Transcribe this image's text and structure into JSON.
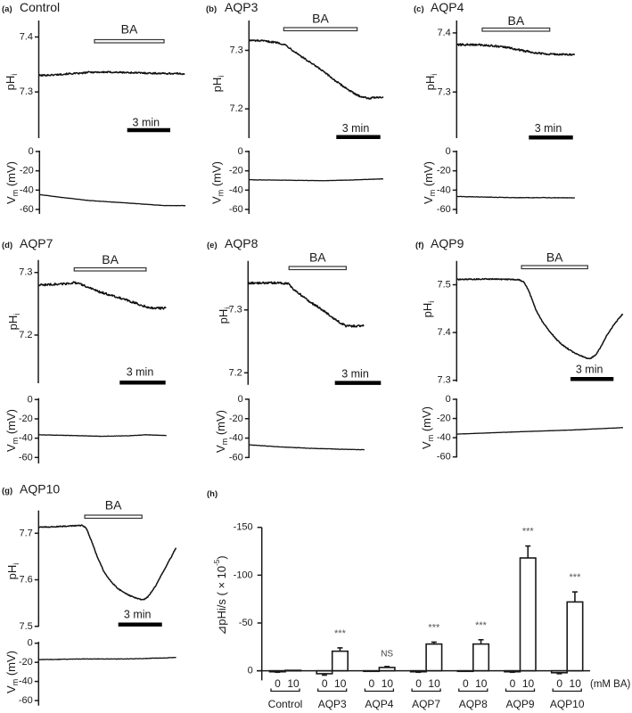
{
  "chart_data": [
    {
      "type": "line",
      "panel_label": "(a)",
      "title": "Control",
      "duration_min": 10.2,
      "treatment": {
        "label": "BA",
        "start_min": 3.88,
        "end_min": 8.73
      },
      "scale_bar": {
        "label": "3 min",
        "duration_min": 3
      },
      "ph": {
        "ylabel": "pH",
        "ylabel_sub": "i",
        "ylim": [
          7.216,
          7.43
        ],
        "yticks": [
          7.4,
          7.3
        ],
        "ytick_labels": [
          "7.4",
          "7.3"
        ],
        "noise": 0.0014,
        "points": [
          [
            0,
            7.33
          ],
          [
            1,
            7.331
          ],
          [
            2,
            7.333
          ],
          [
            3,
            7.334
          ],
          [
            3.5,
            7.336
          ],
          [
            5,
            7.336
          ],
          [
            6.6,
            7.335
          ],
          [
            8,
            7.334
          ],
          [
            9.7,
            7.3334
          ],
          [
            10.2,
            7.333
          ]
        ]
      },
      "vm": {
        "ylabel": "V",
        "ylabel_sub": "m",
        "ylabel_unit": " (mV)",
        "ylim": [
          -64.6,
          0.9
        ],
        "yticks": [
          0,
          -20,
          -40,
          -60
        ],
        "ytick_labels": [
          "0",
          "-20",
          "-40",
          "-60"
        ],
        "noise": 0.15,
        "points": [
          [
            0,
            -44.6
          ],
          [
            1.5,
            -47.5
          ],
          [
            3.5,
            -50.8
          ],
          [
            6.6,
            -53.8
          ],
          [
            8.7,
            -56
          ],
          [
            10.2,
            -56
          ]
        ]
      }
    },
    {
      "type": "line",
      "panel_label": "(b)",
      "title": "AQP3",
      "duration_min": 9.15,
      "treatment": {
        "label": "BA",
        "start_min": 2.37,
        "end_min": 7.37
      },
      "scale_bar": {
        "label": "3 min",
        "duration_min": 3
      },
      "ph": {
        "ylabel": "pH",
        "ylabel_sub": "i",
        "ylim": [
          7.15,
          7.351
        ],
        "yticks": [
          7.3,
          7.2
        ],
        "ytick_labels": [
          "7.3",
          "7.2"
        ],
        "noise": 0.0014,
        "points": [
          [
            0,
            7.317
          ],
          [
            1,
            7.316
          ],
          [
            2,
            7.313
          ],
          [
            2.5,
            7.309
          ],
          [
            3.1,
            7.298
          ],
          [
            4,
            7.282
          ],
          [
            4.9,
            7.267
          ],
          [
            6.1,
            7.244
          ],
          [
            7.3,
            7.224
          ],
          [
            7.8,
            7.22
          ],
          [
            8.2,
            7.218
          ],
          [
            8.7,
            7.22
          ],
          [
            9.15,
            7.22
          ]
        ]
      },
      "vm": {
        "ylabel": "V",
        "ylabel_sub": "m",
        "ylabel_unit": " (mV)",
        "ylim": [
          -64.6,
          0.9
        ],
        "yticks": [
          0,
          -20,
          -40,
          -60
        ],
        "ytick_labels": [
          "0",
          "-20",
          "-40",
          "-60"
        ],
        "noise": 0.15,
        "points": [
          [
            0,
            -29.3
          ],
          [
            3,
            -29.8
          ],
          [
            5,
            -30.2
          ],
          [
            7,
            -29.5
          ],
          [
            9.15,
            -28.3
          ]
        ]
      }
    },
    {
      "type": "line",
      "panel_label": "(c)",
      "title": "AQP4",
      "duration_min": 8.06,
      "treatment": {
        "label": "BA",
        "start_min": 1.74,
        "end_min": 6.34
      },
      "scale_bar": {
        "label": "3 min",
        "duration_min": 3
      },
      "ph": {
        "ylabel": "pH",
        "ylabel_sub": "i",
        "ylim": [
          7.222,
          7.421
        ],
        "yticks": [
          7.4,
          7.3
        ],
        "ytick_labels": [
          "7.4",
          "7.3"
        ],
        "noise": 0.0016,
        "points": [
          [
            0,
            7.38
          ],
          [
            1.5,
            7.38
          ],
          [
            2.5,
            7.378
          ],
          [
            3.5,
            7.375
          ],
          [
            4.5,
            7.37
          ],
          [
            5.5,
            7.366
          ],
          [
            6.5,
            7.364
          ],
          [
            8.06,
            7.363
          ]
        ]
      },
      "vm": {
        "ylabel": "V",
        "ylabel_sub": "m",
        "ylabel_unit": " (mV)",
        "ylim": [
          -64.6,
          0.9
        ],
        "yticks": [
          0,
          -20,
          -40,
          -60
        ],
        "ytick_labels": [
          "0",
          "-20",
          "-40",
          "-60"
        ],
        "noise": 0.25,
        "points": [
          [
            0,
            -46.5
          ],
          [
            2,
            -47.2
          ],
          [
            4,
            -47.8
          ],
          [
            6,
            -47.8
          ],
          [
            8.06,
            -48
          ]
        ]
      }
    },
    {
      "type": "line",
      "panel_label": "(d)",
      "title": "AQP7",
      "duration_min": 8.4,
      "treatment": {
        "label": "BA",
        "start_min": 2.35,
        "end_min": 7.06
      },
      "scale_bar": {
        "label": "3 min",
        "duration_min": 3
      },
      "ph": {
        "ylabel": "pH",
        "ylabel_sub": "i",
        "ylim": [
          7.123,
          7.32
        ],
        "yticks": [
          7.3,
          7.2
        ],
        "ytick_labels": [
          "7.3",
          "7.2"
        ],
        "noise": 0.0016,
        "points": [
          [
            0,
            7.28
          ],
          [
            1,
            7.281
          ],
          [
            1.8,
            7.282
          ],
          [
            2.3,
            7.284
          ],
          [
            2.8,
            7.281
          ],
          [
            3.5,
            7.274
          ],
          [
            4,
            7.269
          ],
          [
            5,
            7.262
          ],
          [
            6,
            7.254
          ],
          [
            6.6,
            7.249
          ],
          [
            7.2,
            7.244
          ],
          [
            7.8,
            7.243
          ],
          [
            8.4,
            7.243
          ]
        ]
      },
      "vm": {
        "ylabel": "V",
        "ylabel_sub": "m",
        "ylabel_unit": " (mV)",
        "ylim": [
          -66.2,
          1.5
        ],
        "yticks": [
          0,
          -20,
          -40,
          -60
        ],
        "ytick_labels": [
          "0",
          "-20",
          "-40",
          "-60"
        ],
        "noise": 0.2,
        "points": [
          [
            0,
            -36.5
          ],
          [
            2,
            -37.2
          ],
          [
            4,
            -38
          ],
          [
            6,
            -37.5
          ],
          [
            7,
            -36.5
          ],
          [
            8.4,
            -37.2
          ]
        ]
      }
    },
    {
      "type": "line",
      "panel_label": "(e)",
      "title": "AQP8",
      "duration_min": 7.56,
      "treatment": {
        "label": "BA",
        "start_min": 2.67,
        "end_min": 6.4
      },
      "scale_bar": {
        "label": "3 min",
        "duration_min": 3
      },
      "ph": {
        "ylabel": "pH",
        "ylabel_sub": "i",
        "ylim": [
          7.181,
          7.378
        ],
        "yticks": [
          7.3,
          7.2
        ],
        "ytick_labels": [
          "7.3",
          "7.2"
        ],
        "noise": 0.0016,
        "points": [
          [
            0,
            7.3425
          ],
          [
            1,
            7.343
          ],
          [
            2,
            7.343
          ],
          [
            2.6,
            7.342
          ],
          [
            3,
            7.332
          ],
          [
            3.5,
            7.323
          ],
          [
            4,
            7.313
          ],
          [
            4.5,
            7.306
          ],
          [
            5,
            7.297
          ],
          [
            5.5,
            7.288
          ],
          [
            6,
            7.28
          ],
          [
            6.4,
            7.274
          ],
          [
            7,
            7.2745
          ],
          [
            7.56,
            7.275
          ]
        ]
      },
      "vm": {
        "ylabel": "V",
        "ylabel_sub": "m",
        "ylabel_unit": " (mV)",
        "ylim": [
          -60.6,
          0.6
        ],
        "yticks": [
          0,
          -20,
          -40,
          -60
        ],
        "ytick_labels": [
          "0",
          "-20",
          "-40",
          "-60"
        ],
        "noise": 0.2,
        "points": [
          [
            0,
            -47
          ],
          [
            2,
            -49
          ],
          [
            4,
            -50.5
          ],
          [
            6,
            -51.5
          ],
          [
            7.56,
            -52
          ]
        ]
      }
    },
    {
      "type": "line",
      "panel_label": "(f)",
      "title": "AQP9",
      "duration_min": 11.6,
      "treatment": {
        "label": "BA",
        "start_min": 4.52,
        "end_min": 9.13
      },
      "scale_bar": {
        "label": "3 min",
        "duration_min": 3
      },
      "ph": {
        "ylabel": "pH",
        "ylabel_sub": "i",
        "ylim": [
          7.297,
          7.55
        ],
        "yticks": [
          7.5,
          7.4,
          7.3
        ],
        "ytick_labels": [
          "7.5",
          "7.4",
          "7.3"
        ],
        "noise": 0.0011,
        "points": [
          [
            0,
            7.511
          ],
          [
            2,
            7.512
          ],
          [
            4,
            7.511
          ],
          [
            4.4,
            7.51
          ],
          [
            4.7,
            7.505
          ],
          [
            5,
            7.489
          ],
          [
            5.5,
            7.449
          ],
          [
            6,
            7.421
          ],
          [
            6.5,
            7.402
          ],
          [
            7,
            7.384
          ],
          [
            7.5,
            7.371
          ],
          [
            8,
            7.361
          ],
          [
            8.5,
            7.353
          ],
          [
            9,
            7.347
          ],
          [
            9.3,
            7.3455
          ],
          [
            9.7,
            7.353
          ],
          [
            10,
            7.368
          ],
          [
            10.5,
            7.396
          ],
          [
            11,
            7.418
          ],
          [
            11.6,
            7.44
          ]
        ]
      },
      "vm": {
        "ylabel": "V",
        "ylabel_sub": "m",
        "ylabel_unit": " (mV)",
        "ylim": [
          -60.6,
          0.65
        ],
        "yticks": [
          0,
          -20,
          -40,
          -60
        ],
        "ytick_labels": [
          "0",
          "-20",
          "-40",
          "-60"
        ],
        "noise": 0.12,
        "points": [
          [
            0,
            -36.3
          ],
          [
            4,
            -34
          ],
          [
            8,
            -32
          ],
          [
            11.6,
            -29.5
          ]
        ]
      }
    },
    {
      "type": "line",
      "panel_label": "(g)",
      "title": "AQP10",
      "duration_min": 9.45,
      "treatment": {
        "label": "BA",
        "start_min": 3.17,
        "end_min": 7.1
      },
      "scale_bar": {
        "label": "3 min",
        "duration_min": 3
      },
      "ph": {
        "ylabel": "pH",
        "ylabel_sub": "i",
        "ylim": [
          7.499,
          7.749
        ],
        "yticks": [
          7.7,
          7.6,
          7.5
        ],
        "ytick_labels": [
          "7.7",
          "7.6",
          "7.5"
        ],
        "noise": 0.0011,
        "points": [
          [
            0,
            7.7126
          ],
          [
            1.5,
            7.7146
          ],
          [
            3,
            7.717
          ],
          [
            3.3,
            7.7096
          ],
          [
            3.7,
            7.678
          ],
          [
            4,
            7.652
          ],
          [
            4.5,
            7.617
          ],
          [
            5,
            7.595
          ],
          [
            5.5,
            7.58
          ],
          [
            6,
            7.57
          ],
          [
            6.5,
            7.563
          ],
          [
            7,
            7.558
          ],
          [
            7.2,
            7.5575
          ],
          [
            7.5,
            7.563
          ],
          [
            8,
            7.585
          ],
          [
            8.5,
            7.614
          ],
          [
            9,
            7.6425
          ],
          [
            9.45,
            7.669
          ]
        ]
      },
      "vm": {
        "ylabel": "V",
        "ylabel_sub": "m",
        "ylabel_unit": " (mV)",
        "ylim": [
          -65.3,
          1.6
        ],
        "yticks": [
          0,
          -20,
          -40,
          -60
        ],
        "ytick_labels": [
          "0",
          "-20",
          "-40",
          "-60"
        ],
        "noise": 0.25,
        "points": [
          [
            0,
            -17.2
          ],
          [
            3,
            -16.5
          ],
          [
            6,
            -16.5
          ],
          [
            9.45,
            -15
          ]
        ]
      }
    },
    {
      "type": "bar",
      "panel_label": "(h)",
      "ylabel": "⊿pHi/s ( × 10",
      "ylabel_sup": "-5",
      "ylabel_end": ")",
      "ylim": [
        -150,
        10
      ],
      "y_inverted": true,
      "yticks": [
        -150,
        -100,
        -50,
        0
      ],
      "ytick_labels": [
        "-150",
        "-100",
        "-50",
        "0"
      ],
      "categories": [
        "Control",
        "AQP3",
        "AQP4",
        "AQP7",
        "AQP8",
        "AQP9",
        "AQP10"
      ],
      "dose_labels": [
        "0",
        "10"
      ],
      "dose_unit": "(mM BA)",
      "series": [
        {
          "name": "0 mM BA",
          "values": [
            1,
            3,
            0,
            1,
            0.5,
            1,
            2
          ],
          "errors": [
            0.5,
            1.5,
            0,
            0.5,
            0,
            0.5,
            1
          ]
        },
        {
          "name": "10 mM BA",
          "values": [
            -0.5,
            -20.5,
            -3.5,
            -28,
            -28,
            -118,
            -72
          ],
          "errors": [
            0,
            3.5,
            1,
            2,
            4.5,
            12.5,
            10.5
          ]
        }
      ],
      "significance": [
        "",
        "***",
        "NS",
        "***",
        "***",
        "***",
        "***"
      ]
    }
  ]
}
